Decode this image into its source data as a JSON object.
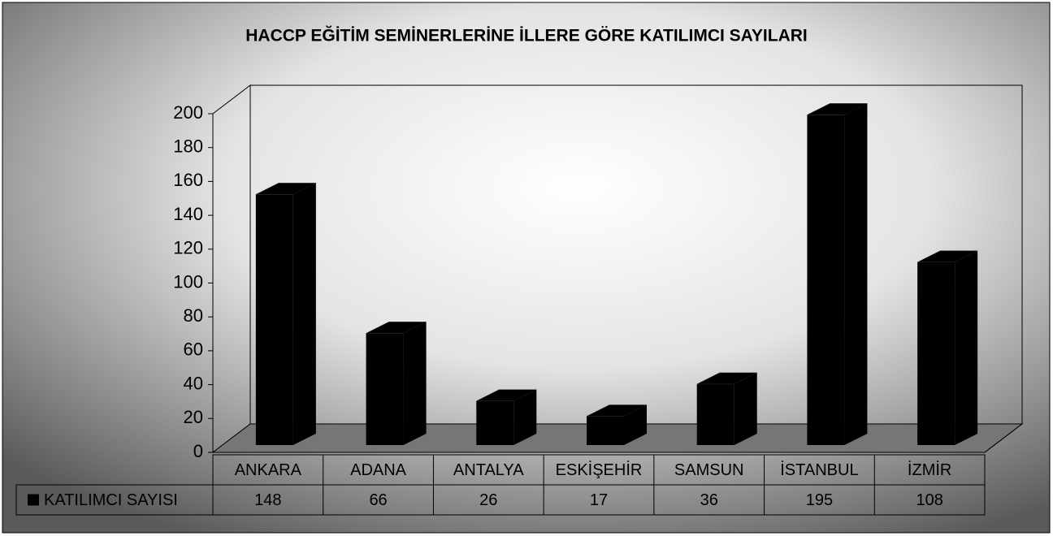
{
  "chart_data": {
    "type": "bar",
    "title": "HACCP EĞİTİM SEMİNERLERİNE İLLERE GÖRE KATILIMCI SAYILARI",
    "categories": [
      "ANKARA",
      "ADANA",
      "ANTALYA",
      "ESKİŞEHİR",
      "SAMSUN",
      "İSTANBUL",
      "İZMİR"
    ],
    "series": [
      {
        "name": "KATILIMCI SAYISI",
        "color": "#000000",
        "values": [
          148,
          66,
          26,
          17,
          36,
          195,
          108
        ]
      }
    ],
    "ylim": [
      0,
      200
    ],
    "yticks": [
      0,
      20,
      40,
      60,
      80,
      100,
      120,
      140,
      160,
      180,
      200
    ],
    "grid": false,
    "legend": "bottom-left"
  }
}
